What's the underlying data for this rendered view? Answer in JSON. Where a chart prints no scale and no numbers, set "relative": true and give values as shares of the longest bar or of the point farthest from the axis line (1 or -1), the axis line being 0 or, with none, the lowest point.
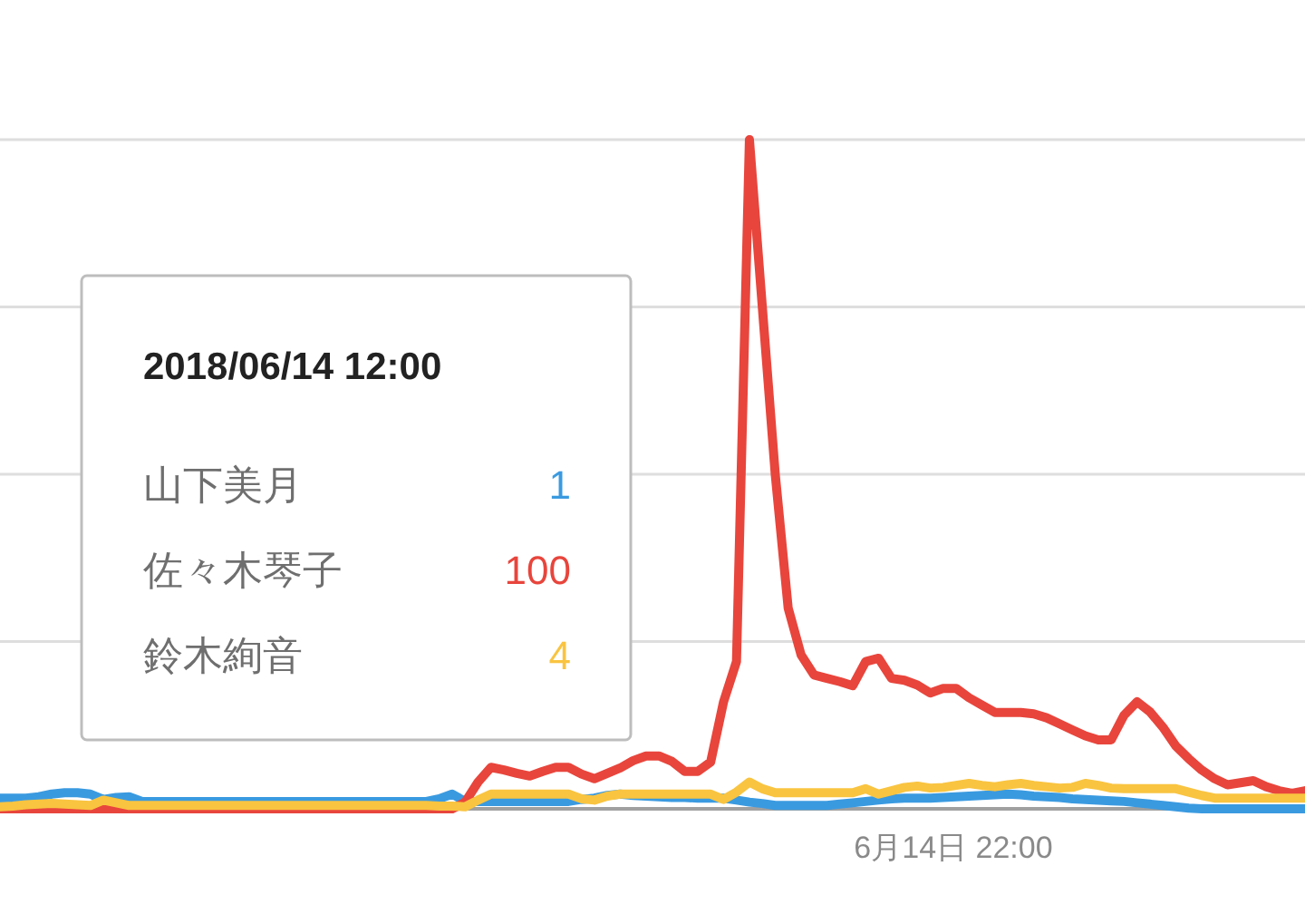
{
  "chart_data": {
    "type": "line",
    "relative": true,
    "grid": "y",
    "categories": [
      null,
      null,
      null,
      null,
      null,
      null,
      null,
      null,
      null,
      null,
      null,
      null,
      null,
      null,
      null,
      null,
      null,
      null,
      null,
      null,
      null,
      null,
      null,
      null,
      null,
      null,
      null,
      null,
      null,
      null,
      null,
      null,
      null,
      null,
      null,
      null,
      null,
      null,
      null,
      null,
      null,
      null,
      null,
      null,
      null,
      null,
      null,
      null,
      null,
      null,
      null,
      null,
      null,
      null,
      null,
      null,
      null,
      null,
      null,
      null,
      null,
      null,
      null,
      null,
      null,
      null,
      null,
      null,
      null,
      null,
      null,
      null,
      null,
      null,
      null,
      null,
      null,
      null,
      null,
      null,
      null,
      null,
      null,
      null,
      null,
      null,
      null,
      null,
      null,
      null,
      null,
      null,
      null,
      null,
      null,
      null,
      null,
      null,
      null,
      null,
      null,
      null
    ],
    "annotations": [
      "2018/06/14 12:00",
      "山下美月",
      "1",
      "佐々木琴子",
      "100",
      "鈴木絢音",
      "4",
      "6月14日 22:00"
    ],
    "series": [
      {
        "color": "#3a9ae0",
        "values": [
          0.016,
          0.016,
          0.016,
          0.018,
          0.022,
          0.024,
          0.024,
          0.022,
          0.014,
          0.017,
          0.018,
          0.011,
          0.011,
          0.011,
          0.011,
          0.011,
          0.011,
          0.011,
          0.011,
          0.011,
          0.011,
          0.011,
          0.011,
          0.011,
          0.011,
          0.011,
          0.011,
          0.011,
          0.011,
          0.011,
          0.011,
          0.011,
          0.011,
          0.011,
          0.015,
          0.022,
          0.011,
          0.011,
          0.011,
          0.011,
          0.011,
          0.011,
          0.011,
          0.011,
          0.011,
          0.014,
          0.016,
          0.02,
          0.022,
          0.02,
          0.019,
          0.018,
          0.017,
          0.017,
          0.016,
          0.016,
          0.016,
          0.013,
          0.01,
          0.008,
          0.005,
          0.005,
          0.005,
          0.005,
          0.005,
          0.007,
          0.009,
          0.011,
          0.013,
          0.015,
          0.016,
          0.016,
          0.016,
          0.017,
          0.018,
          0.019,
          0.02,
          0.021,
          0.022,
          0.021,
          0.019,
          0.018,
          0.017,
          0.015,
          0.014,
          0.013,
          0.012,
          0.011,
          0.009,
          0.007,
          0.005,
          0.003,
          0.001,
          0,
          0,
          0,
          0,
          0,
          0,
          0,
          0,
          0
        ]
      },
      {
        "color": "#e8453c",
        "values": [
          0,
          0,
          0,
          0,
          0,
          0,
          0,
          0,
          0,
          0,
          0,
          0,
          0,
          0,
          0,
          0,
          0,
          0,
          0,
          0,
          0,
          0,
          0,
          0,
          0,
          0,
          0,
          0,
          0,
          0,
          0,
          0,
          0,
          0,
          0,
          0,
          0.01,
          0.04,
          0.062,
          0.058,
          0.053,
          0.049,
          0.056,
          0.062,
          0.062,
          0.052,
          0.045,
          0.053,
          0.061,
          0.072,
          0.079,
          0.079,
          0.071,
          0.056,
          0.056,
          0.07,
          0.16,
          0.22,
          1,
          0.75,
          0.5,
          0.3,
          0.23,
          0.2,
          0.195,
          0.19,
          0.184,
          0.22,
          0.225,
          0.195,
          0.192,
          0.185,
          0.173,
          0.18,
          0.18,
          0.166,
          0.155,
          0.144,
          0.144,
          0.144,
          0.142,
          0.136,
          0.127,
          0.118,
          0.109,
          0.103,
          0.103,
          0.14,
          0.16,
          0.145,
          0.122,
          0.094,
          0.075,
          0.058,
          0.045,
          0.036,
          0.039,
          0.042,
          0.033,
          0.027,
          0.023,
          0.027
        ]
      },
      {
        "color": "#f9c440",
        "values": [
          0.003,
          0.004,
          0.006,
          0.007,
          0.008,
          0.007,
          0.006,
          0.005,
          0.013,
          0.009,
          0.005,
          0.005,
          0.005,
          0.005,
          0.005,
          0.005,
          0.005,
          0.005,
          0.005,
          0.005,
          0.005,
          0.005,
          0.005,
          0.005,
          0.005,
          0.005,
          0.005,
          0.005,
          0.005,
          0.005,
          0.005,
          0.005,
          0.005,
          0.005,
          0.004,
          0.004,
          0.003,
          0.013,
          0.022,
          0.022,
          0.022,
          0.022,
          0.022,
          0.022,
          0.022,
          0.015,
          0.013,
          0.019,
          0.022,
          0.022,
          0.022,
          0.022,
          0.022,
          0.022,
          0.022,
          0.022,
          0.014,
          0.025,
          0.04,
          0.03,
          0.024,
          0.024,
          0.024,
          0.024,
          0.024,
          0.024,
          0.024,
          0.03,
          0.022,
          0.027,
          0.032,
          0.034,
          0.031,
          0.032,
          0.035,
          0.038,
          0.035,
          0.033,
          0.036,
          0.038,
          0.035,
          0.033,
          0.031,
          0.032,
          0.038,
          0.035,
          0.031,
          0.03,
          0.03,
          0.03,
          0.03,
          0.03,
          0.025,
          0.02,
          0.016,
          0.016,
          0.016,
          0.016,
          0.016,
          0.016,
          0.016,
          0.016
        ]
      }
    ]
  }
}
